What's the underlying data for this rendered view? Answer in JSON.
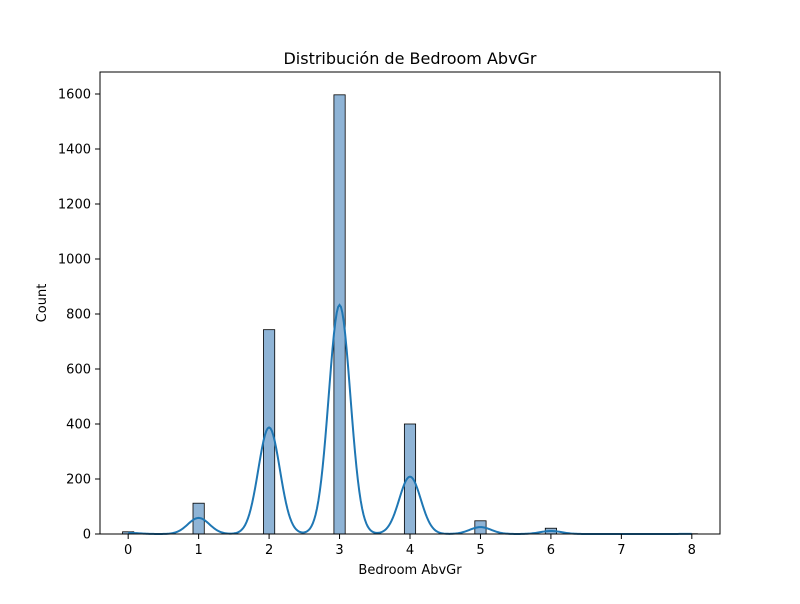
{
  "chart_data": {
    "type": "bar",
    "title": "Distribución de Bedroom AbvGr",
    "xlabel": "Bedroom AbvGr",
    "ylabel": "Count",
    "xlim": [
      -0.4,
      8.4
    ],
    "ylim": [
      0,
      1680
    ],
    "x_ticks": [
      0,
      1,
      2,
      3,
      4,
      5,
      6,
      7,
      8
    ],
    "y_ticks": [
      0,
      200,
      400,
      600,
      800,
      1000,
      1200,
      1400,
      1600
    ],
    "bin_width": 0.16,
    "bars": [
      {
        "x": 0,
        "value": 8
      },
      {
        "x": 1,
        "value": 112
      },
      {
        "x": 2,
        "value": 743
      },
      {
        "x": 3,
        "value": 1597
      },
      {
        "x": 4,
        "value": 400
      },
      {
        "x": 5,
        "value": 48
      },
      {
        "x": 6,
        "value": 21
      },
      {
        "x": 8,
        "value": 1
      }
    ],
    "kde": {
      "bandwidth": 0.153,
      "peak_scale": 1
    },
    "grid": false,
    "colors": {
      "bar_fill": "#8fb4d6",
      "bar_edge": "#000000",
      "kde_line": "#1f77b4"
    }
  }
}
